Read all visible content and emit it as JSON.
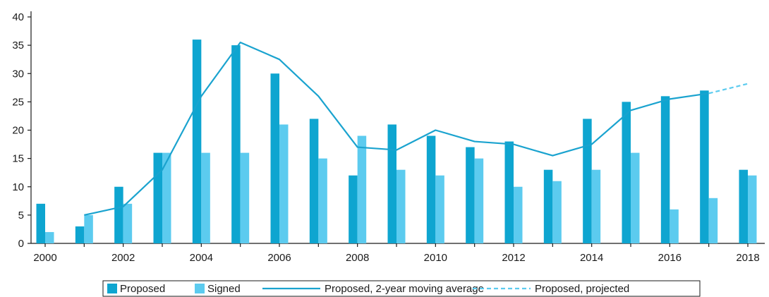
{
  "chart_data": {
    "type": "bar",
    "categories": [
      "2000",
      "2001",
      "2002",
      "2003",
      "2004",
      "2005",
      "2006",
      "2007",
      "2008",
      "2009",
      "2010",
      "2011",
      "2012",
      "2013",
      "2014",
      "2015",
      "2016",
      "2017",
      "2018"
    ],
    "x_tick_labels": [
      "2000",
      "2002",
      "2004",
      "2006",
      "2008",
      "2010",
      "2012",
      "2014",
      "2016",
      "2018"
    ],
    "y_ticks": [
      "0",
      "5",
      "10",
      "15",
      "20",
      "25",
      "30",
      "35",
      "40"
    ],
    "ylim": [
      0,
      40
    ],
    "series": [
      {
        "name": "Proposed",
        "type": "bar",
        "color": "#0ea5d0",
        "values": [
          7,
          3,
          10,
          16,
          36,
          35,
          30,
          22,
          12,
          21,
          19,
          17,
          18,
          13,
          22,
          25,
          26,
          27,
          13
        ]
      },
      {
        "name": "Signed",
        "type": "bar",
        "color": "#5ccbef",
        "values": [
          2,
          5,
          7,
          16,
          16,
          16,
          21,
          15,
          19,
          13,
          12,
          15,
          10,
          11,
          13,
          16,
          6,
          8,
          12
        ]
      },
      {
        "name": "Proposed, 2-year moving average",
        "type": "line",
        "color": "#1aa3cf",
        "x": [
          "2001",
          "2002",
          "2003",
          "2004",
          "2005",
          "2006",
          "2007",
          "2008",
          "2009",
          "2010",
          "2011",
          "2012",
          "2013",
          "2014",
          "2015",
          "2016",
          "2017"
        ],
        "values": [
          5,
          6.5,
          13,
          26,
          35.5,
          32.5,
          26,
          17,
          16.5,
          20,
          18,
          17.5,
          15.5,
          17.5,
          23.5,
          25.5,
          26.5
        ]
      },
      {
        "name": "Proposed, projected",
        "type": "line",
        "style": "dashed",
        "color": "#5ccbef",
        "x": [
          "2017",
          "2018"
        ],
        "values": [
          26.5,
          28.2
        ]
      }
    ],
    "legend": {
      "position": "bottom",
      "entries": [
        "Proposed",
        "Signed",
        "Proposed, 2-year moving average",
        "Proposed, projected"
      ]
    },
    "grid": false
  }
}
